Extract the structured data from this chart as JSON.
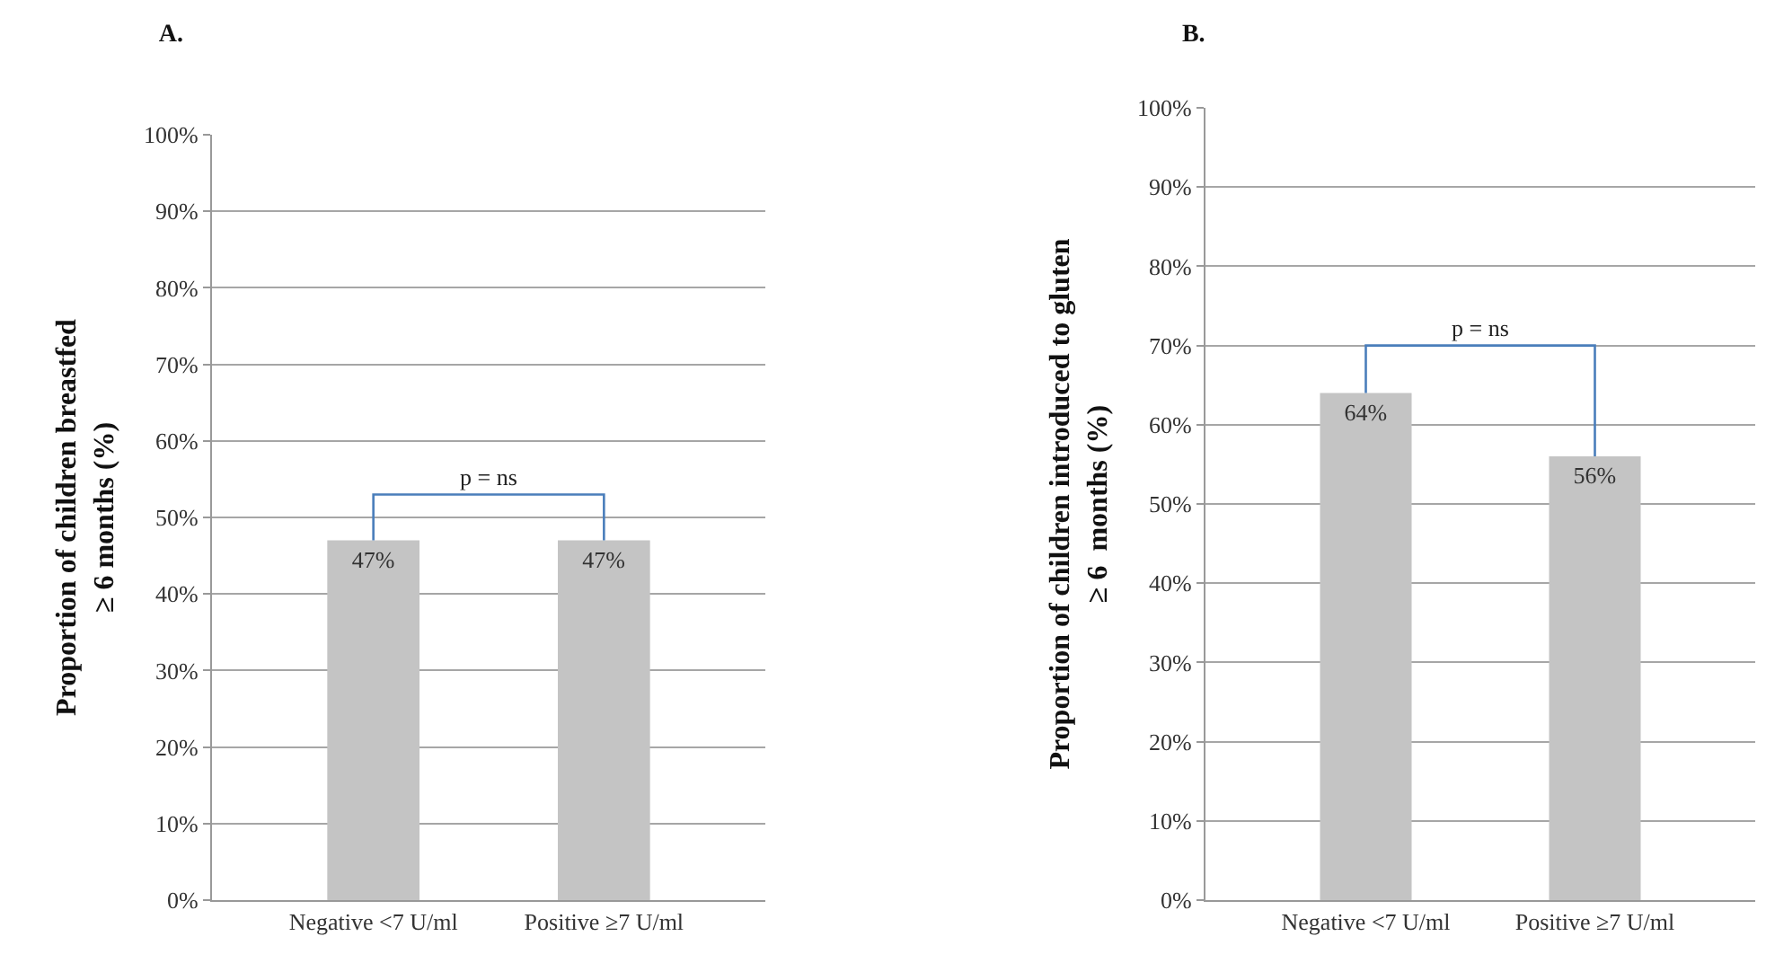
{
  "chart_data": [
    {
      "type": "bar",
      "title": "A.",
      "ylabel": "Proportion of children breastfed\n≥ 6 months (%)",
      "categories": [
        "Negative <7 U/ml",
        "Positive ≥7 U/ml"
      ],
      "values": [
        47,
        47
      ],
      "value_labels": [
        "47%",
        "47%"
      ],
      "color": "#c4c4c4",
      "ylim": [
        0,
        100
      ],
      "yticks": [
        {
          "value": 0,
          "label": "0%"
        },
        {
          "value": 10,
          "label": "10%"
        },
        {
          "value": 20,
          "label": "20%"
        },
        {
          "value": 30,
          "label": "30%"
        },
        {
          "value": 40,
          "label": "40%"
        },
        {
          "value": 50,
          "label": "50%"
        },
        {
          "value": 60,
          "label": "60%"
        },
        {
          "value": 70,
          "label": "70%"
        },
        {
          "value": 80,
          "label": "80%"
        },
        {
          "value": 90,
          "label": "90%"
        },
        {
          "value": 100,
          "label": "100%"
        }
      ],
      "grid": "y",
      "annotations": [
        "p = ns"
      ]
    },
    {
      "type": "bar",
      "title": "B.",
      "ylabel": "Proportion of children introduced to gluten\n≥ 6  months (%)",
      "categories": [
        "Negative <7 U/ml",
        "Positive ≥7 U/ml"
      ],
      "values": [
        64,
        56
      ],
      "value_labels": [
        "64%",
        "56%"
      ],
      "color": "#c4c4c4",
      "ylim": [
        0,
        100
      ],
      "yticks": [
        {
          "value": 0,
          "label": "0%"
        },
        {
          "value": 10,
          "label": "10%"
        },
        {
          "value": 20,
          "label": "20%"
        },
        {
          "value": 30,
          "label": "30%"
        },
        {
          "value": 40,
          "label": "40%"
        },
        {
          "value": 50,
          "label": "50%"
        },
        {
          "value": 60,
          "label": "60%"
        },
        {
          "value": 70,
          "label": "70%"
        },
        {
          "value": 80,
          "label": "80%"
        },
        {
          "value": 90,
          "label": "90%"
        },
        {
          "value": 100,
          "label": "100%"
        }
      ],
      "grid": "y",
      "annotations": [
        "p = ns"
      ]
    }
  ]
}
